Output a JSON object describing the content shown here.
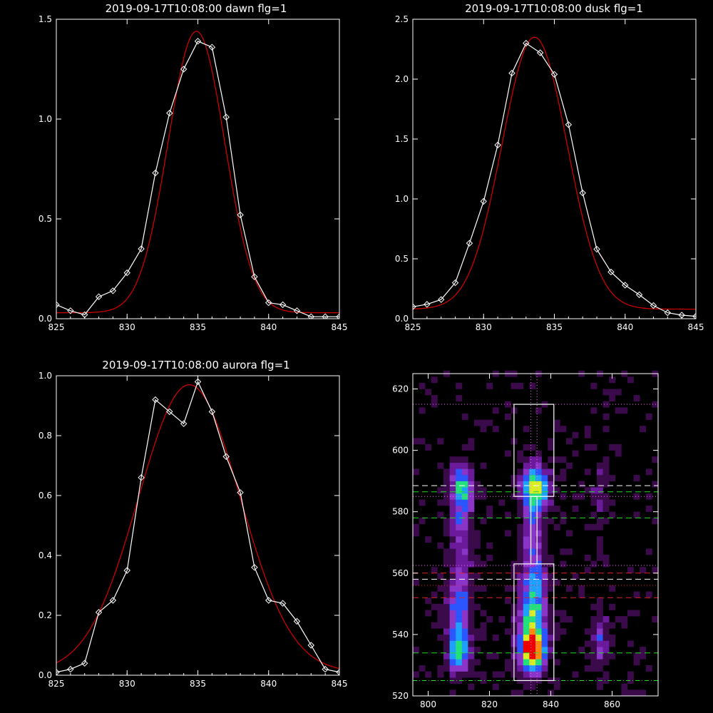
{
  "chart_data": [
    {
      "type": "line",
      "title": "2019-09-17T10:08:00 dawn flg=1",
      "xlim": [
        825,
        845
      ],
      "ylim": [
        0,
        1.5
      ],
      "x_ticks": [
        "825",
        "830",
        "835",
        "840",
        "845"
      ],
      "y_ticks": [
        "0.0",
        "0.5",
        "1.0",
        "1.5"
      ],
      "x_tick_values": [
        825,
        830,
        835,
        840,
        845
      ],
      "y_tick_values": [
        0,
        0.5,
        1.0,
        1.5
      ],
      "series": [
        {
          "kind": "data",
          "color": "#ffffff",
          "marker": "diamond",
          "x": [
            825,
            826,
            827,
            828,
            829,
            830,
            831,
            832,
            833,
            834,
            835,
            836,
            837,
            838,
            839,
            840,
            841,
            842,
            843,
            844,
            845
          ],
          "y": [
            0.07,
            0.04,
            0.02,
            0.11,
            0.14,
            0.23,
            0.35,
            0.73,
            1.03,
            1.25,
            1.39,
            1.36,
            1.01,
            0.52,
            0.21,
            0.08,
            0.07,
            0.04,
            0.01,
            0.01,
            0.01
          ]
        },
        {
          "kind": "gaussian_fit",
          "color": "#cc0000",
          "amplitude": 1.41,
          "center": 834.9,
          "sigma": 2.0,
          "baseline": 0.03
        }
      ]
    },
    {
      "type": "line",
      "title": "2019-09-17T10:08:00 dusk flg=1",
      "xlim": [
        825,
        845
      ],
      "ylim": [
        0,
        2.5
      ],
      "x_ticks": [
        "825",
        "830",
        "835",
        "840",
        "845"
      ],
      "y_ticks": [
        "0.0",
        "0.5",
        "1.0",
        "1.5",
        "2.0",
        "2.5"
      ],
      "x_tick_values": [
        825,
        830,
        835,
        840,
        845
      ],
      "y_tick_values": [
        0,
        0.5,
        1.0,
        1.5,
        2.0,
        2.5
      ],
      "series": [
        {
          "kind": "data",
          "color": "#ffffff",
          "marker": "diamond",
          "x": [
            825,
            826,
            827,
            828,
            829,
            830,
            831,
            832,
            833,
            834,
            835,
            836,
            837,
            838,
            839,
            840,
            841,
            842,
            843,
            844,
            845
          ],
          "y": [
            0.1,
            0.12,
            0.16,
            0.3,
            0.63,
            0.98,
            1.45,
            2.05,
            2.3,
            2.22,
            2.04,
            1.62,
            1.05,
            0.58,
            0.39,
            0.28,
            0.2,
            0.11,
            0.05,
            0.03,
            0.02
          ]
        },
        {
          "kind": "gaussian_fit",
          "color": "#cc0000",
          "amplitude": 2.27,
          "center": 833.6,
          "sigma": 2.3,
          "baseline": 0.08
        }
      ]
    },
    {
      "type": "line",
      "title": "2019-09-17T10:08:00 aurora flg=1",
      "xlim": [
        825,
        845
      ],
      "ylim": [
        0,
        1.0
      ],
      "x_ticks": [
        "825",
        "830",
        "835",
        "840",
        "845"
      ],
      "y_ticks": [
        "0.0",
        "0.2",
        "0.4",
        "0.6",
        "0.8",
        "1.0"
      ],
      "x_tick_values": [
        825,
        830,
        835,
        840,
        845
      ],
      "y_tick_values": [
        0,
        0.2,
        0.4,
        0.6,
        0.8,
        1.0
      ],
      "series": [
        {
          "kind": "data",
          "color": "#ffffff",
          "marker": "diamond",
          "x": [
            825,
            826,
            827,
            828,
            829,
            830,
            831,
            832,
            833,
            834,
            835,
            836,
            837,
            838,
            839,
            840,
            841,
            842,
            843,
            844,
            845
          ],
          "y": [
            0.01,
            0.02,
            0.04,
            0.21,
            0.25,
            0.35,
            0.66,
            0.92,
            0.88,
            0.84,
            0.98,
            0.88,
            0.73,
            0.61,
            0.36,
            0.25,
            0.24,
            0.18,
            0.1,
            0.02,
            0.01
          ]
        },
        {
          "kind": "gaussian_fit",
          "color": "#cc0000",
          "amplitude": 0.96,
          "center": 834.4,
          "sigma": 3.6,
          "baseline": 0.01
        }
      ]
    },
    {
      "type": "heatmap",
      "title": "",
      "xlim": [
        795,
        875
      ],
      "ylim": [
        520,
        625
      ],
      "x_ticks": [
        "800",
        "820",
        "840",
        "860"
      ],
      "y_ticks": [
        "520",
        "540",
        "560",
        "580",
        "600",
        "620"
      ],
      "x_tick_values": [
        800,
        820,
        840,
        860
      ],
      "y_tick_values": [
        520,
        540,
        560,
        580,
        600,
        620
      ],
      "colormap": [
        "#000000",
        "#3a0a4a",
        "#6a1a9a",
        "#8a35c8",
        "#2a55ff",
        "#1ea0ff",
        "#22e07a",
        "#d8f020",
        "#ff8a00",
        "#ee0000"
      ],
      "blobs": [
        {
          "x": 810,
          "y": 535,
          "sx": 2.5,
          "sy": 5,
          "amp": 0.6
        },
        {
          "x": 810,
          "y": 550,
          "sx": 2.5,
          "sy": 8,
          "amp": 0.4
        },
        {
          "x": 811,
          "y": 588,
          "sx": 2.5,
          "sy": 5,
          "amp": 0.55
        },
        {
          "x": 811,
          "y": 573,
          "sx": 2.5,
          "sy": 9,
          "amp": 0.3
        },
        {
          "x": 834,
          "y": 535,
          "sx": 3,
          "sy": 5,
          "amp": 1.0
        },
        {
          "x": 834,
          "y": 548,
          "sx": 3,
          "sy": 6,
          "amp": 0.6
        },
        {
          "x": 835,
          "y": 560,
          "sx": 3,
          "sy": 4,
          "amp": 0.3
        },
        {
          "x": 835,
          "y": 588,
          "sx": 3,
          "sy": 5,
          "amp": 0.7
        },
        {
          "x": 834,
          "y": 573,
          "sx": 2.5,
          "sy": 9,
          "amp": 0.3
        },
        {
          "x": 856,
          "y": 538,
          "sx": 2,
          "sy": 6,
          "amp": 0.3
        },
        {
          "x": 856,
          "y": 585,
          "sx": 2,
          "sy": 8,
          "amp": 0.15
        }
      ],
      "boxes": [
        {
          "x0": 828,
          "x1": 841,
          "y0": 585,
          "y1": 615,
          "color": "#ffffff"
        },
        {
          "x0": 828,
          "x1": 841,
          "y0": 525,
          "y1": 563,
          "color": "#ffffff"
        },
        {
          "x0": 833.5,
          "x1": 835.5,
          "y0": 563,
          "y1": 585,
          "color": "#ffffff"
        }
      ],
      "hlines": [
        {
          "y": 615,
          "color": "#ff66ff",
          "style": "dotted"
        },
        {
          "y": 588.5,
          "color": "#ffffff",
          "style": "dashed"
        },
        {
          "y": 586.5,
          "color": "#22dd22",
          "style": "dashed"
        },
        {
          "y": 585,
          "color": "#ff66ff",
          "style": "dotted"
        },
        {
          "y": 578,
          "color": "#22dd22",
          "style": "dashed"
        },
        {
          "y": 562.5,
          "color": "#ff66ff",
          "style": "dotted"
        },
        {
          "y": 560,
          "color": "#dd2222",
          "style": "dashed"
        },
        {
          "y": 558,
          "color": "#ffffff",
          "style": "dashed"
        },
        {
          "y": 556,
          "color": "#dd2222",
          "style": "dotted"
        },
        {
          "y": 552,
          "color": "#dd2222",
          "style": "dashed"
        },
        {
          "y": 534,
          "color": "#22dd22",
          "style": "dashed"
        },
        {
          "y": 525,
          "color": "#22dd22",
          "style": "dashdot"
        }
      ],
      "vlines": [
        {
          "x": 833.5,
          "color": "#ff66ff",
          "style": "dotted"
        },
        {
          "x": 835.5,
          "color": "#ff66ff",
          "style": "dotted"
        }
      ]
    }
  ]
}
